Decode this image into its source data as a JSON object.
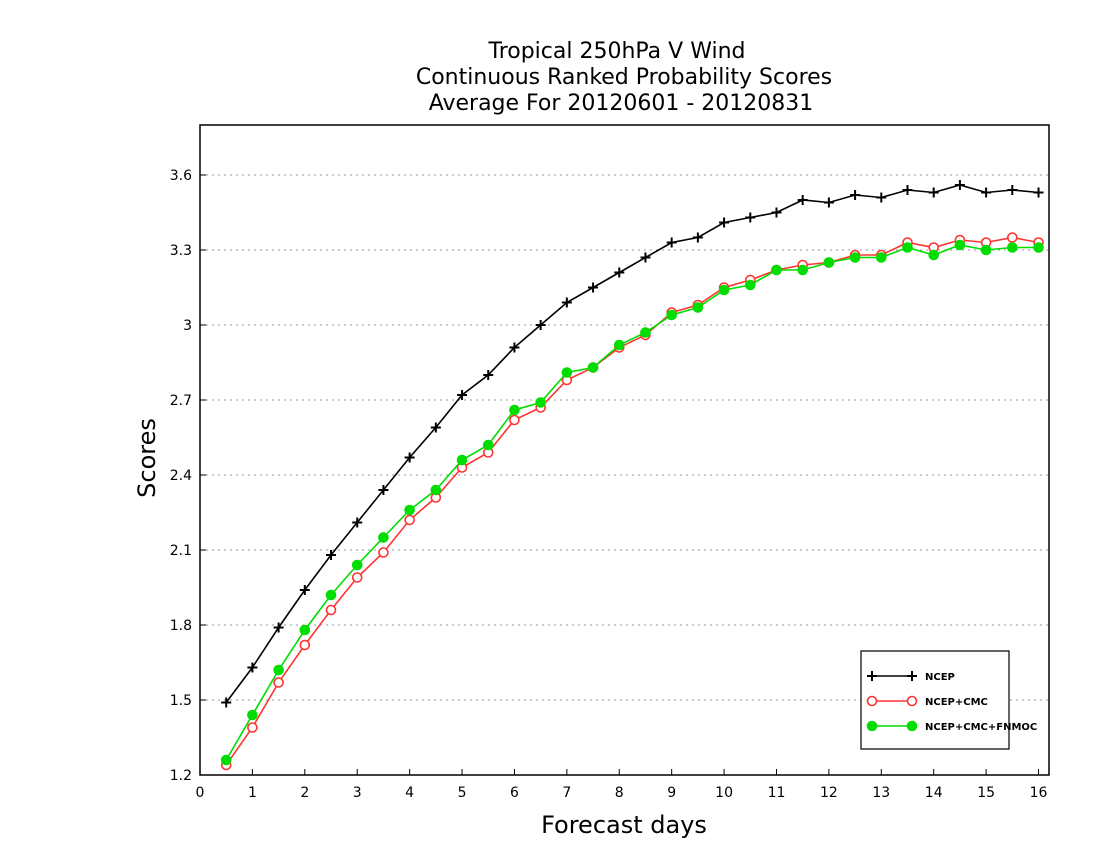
{
  "chart_data": {
    "type": "line",
    "title": [
      "Tropical 250hPa V Wind",
      "Continuous Ranked Probability Scores",
      "Average For 20120601 - 20120831"
    ],
    "xlabel": "Forecast days",
    "ylabel": "Scores",
    "xlim": [
      0,
      16.2
    ],
    "ylim": [
      1.2,
      3.8
    ],
    "xticks": [
      0,
      1,
      2,
      3,
      4,
      5,
      6,
      7,
      8,
      9,
      10,
      11,
      12,
      13,
      14,
      15,
      16
    ],
    "yticks": [
      1.2,
      1.5,
      1.8,
      2.1,
      2.4,
      2.7,
      3,
      3.3,
      3.6
    ],
    "ytick_labels": [
      "1.2",
      "1.5",
      "1.8",
      "2.1",
      "2.4",
      "2.7",
      "3",
      "3.3",
      "3.6"
    ],
    "grid": "horizontal dotted",
    "legend_position": "bottom-right",
    "x": [
      0.5,
      1,
      1.5,
      2,
      2.5,
      3,
      3.5,
      4,
      4.5,
      5,
      5.5,
      6,
      6.5,
      7,
      7.5,
      8,
      8.5,
      9,
      9.5,
      10,
      10.5,
      11,
      11.5,
      12,
      12.5,
      13,
      13.5,
      14,
      14.5,
      15,
      15.5,
      16
    ],
    "series": [
      {
        "name": "NCEP",
        "color": "#000000",
        "marker": "plus",
        "values": [
          1.49,
          1.63,
          1.79,
          1.94,
          2.08,
          2.21,
          2.34,
          2.47,
          2.59,
          2.72,
          2.8,
          2.91,
          3.0,
          3.09,
          3.15,
          3.21,
          3.27,
          3.33,
          3.35,
          3.41,
          3.43,
          3.45,
          3.5,
          3.49,
          3.52,
          3.51,
          3.54,
          3.53,
          3.56,
          3.53,
          3.54,
          3.53
        ]
      },
      {
        "name": "NCEP+CMC",
        "color": "#ff3333",
        "marker": "open-circle",
        "values": [
          1.24,
          1.39,
          1.57,
          1.72,
          1.86,
          1.99,
          2.09,
          2.22,
          2.31,
          2.43,
          2.49,
          2.62,
          2.67,
          2.78,
          2.83,
          2.91,
          2.96,
          3.05,
          3.08,
          3.15,
          3.18,
          3.22,
          3.24,
          3.25,
          3.28,
          3.28,
          3.33,
          3.31,
          3.34,
          3.33,
          3.35,
          3.33
        ]
      },
      {
        "name": "NCEP+CMC+FNMOC",
        "color": "#00dd00",
        "marker": "filled-circle",
        "values": [
          1.26,
          1.44,
          1.62,
          1.78,
          1.92,
          2.04,
          2.15,
          2.26,
          2.34,
          2.46,
          2.52,
          2.66,
          2.69,
          2.81,
          2.83,
          2.92,
          2.97,
          3.04,
          3.07,
          3.14,
          3.16,
          3.22,
          3.22,
          3.25,
          3.27,
          3.27,
          3.31,
          3.28,
          3.32,
          3.3,
          3.31,
          3.31
        ]
      }
    ]
  }
}
